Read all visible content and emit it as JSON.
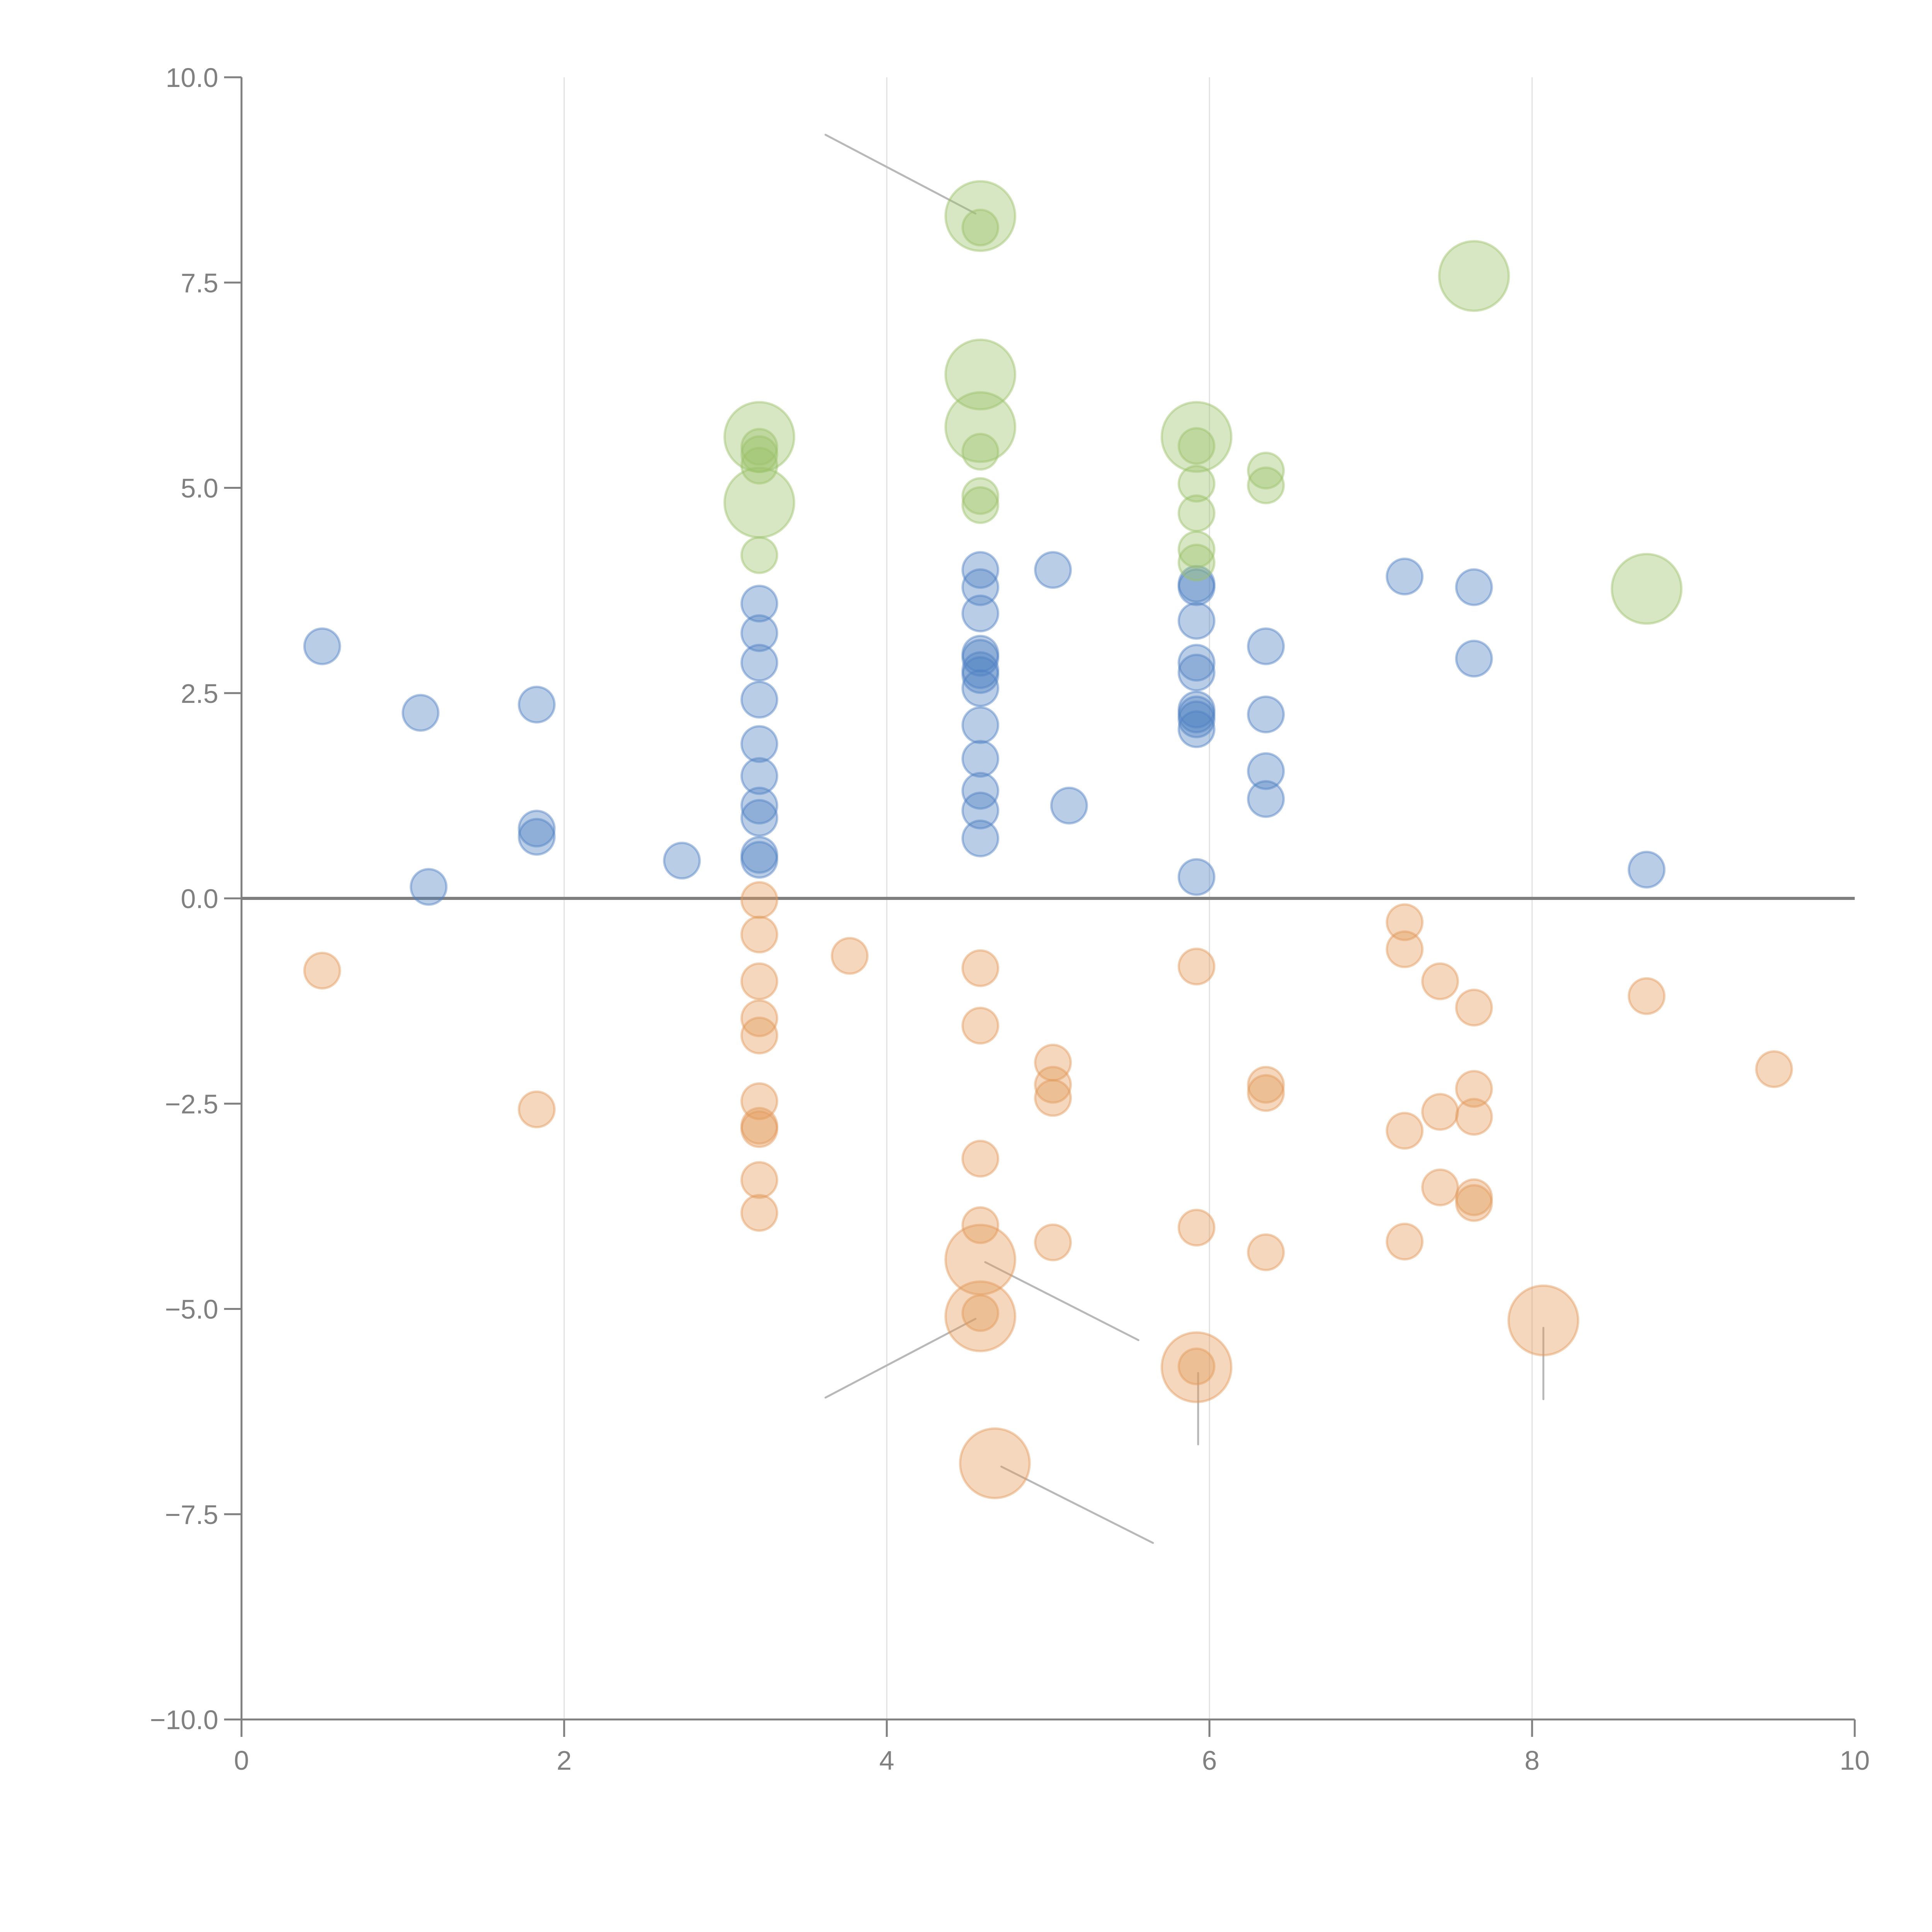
{
  "chart_data": {
    "type": "scatter",
    "title": "",
    "xlabel": "",
    "ylabel": "",
    "xlim": [
      0,
      10
    ],
    "ylim": [
      -10,
      10
    ],
    "grid": "vertical",
    "x_ticks": [
      "0",
      "2",
      "4",
      "6",
      "8",
      "10"
    ],
    "x_tick_values": [
      0,
      2,
      4,
      6,
      8,
      10
    ],
    "y_ticks": [
      "10.0",
      "7.5",
      "5.0",
      "2.5",
      "0.0",
      "−2.5",
      "−5.0",
      "−7.5",
      "−10.0"
    ],
    "y_tick_values": [
      10,
      7.5,
      5,
      2.5,
      0,
      -2.5,
      -5,
      -7.5,
      -10
    ],
    "reference_line_y": 0,
    "legend": "none",
    "size_note": "size 1 = small marker, size 2 = large marker",
    "series": [
      {
        "name": "blue",
        "color": "#4f81c4",
        "points": [
          [
            0.5,
            3.07,
            1
          ],
          [
            1.11,
            2.26,
            1
          ],
          [
            1.83,
            2.36,
            1
          ],
          [
            1.83,
            0.85,
            1
          ],
          [
            1.83,
            0.75,
            1
          ],
          [
            1.16,
            0.14,
            1
          ],
          [
            2.73,
            0.46,
            1
          ],
          [
            3.21,
            3.59,
            1
          ],
          [
            3.21,
            3.23,
            1
          ],
          [
            3.21,
            2.87,
            1
          ],
          [
            3.21,
            2.42,
            1
          ],
          [
            3.21,
            1.88,
            1
          ],
          [
            3.21,
            1.49,
            1
          ],
          [
            3.21,
            1.13,
            1
          ],
          [
            3.21,
            0.98,
            1
          ],
          [
            3.21,
            0.53,
            1
          ],
          [
            3.21,
            0.47,
            1
          ],
          [
            4.58,
            4.0,
            1
          ],
          [
            4.58,
            3.79,
            1
          ],
          [
            4.58,
            3.47,
            1
          ],
          [
            4.58,
            2.98,
            1
          ],
          [
            4.58,
            2.93,
            1
          ],
          [
            4.58,
            2.78,
            1
          ],
          [
            4.58,
            2.72,
            1
          ],
          [
            4.58,
            2.56,
            1
          ],
          [
            4.58,
            2.11,
            1
          ],
          [
            4.58,
            1.7,
            1
          ],
          [
            4.58,
            1.31,
            1
          ],
          [
            4.58,
            1.07,
            1
          ],
          [
            4.58,
            0.73,
            1
          ],
          [
            5.03,
            4.0,
            1
          ],
          [
            5.13,
            1.13,
            1
          ],
          [
            5.92,
            3.83,
            1
          ],
          [
            5.92,
            3.79,
            1
          ],
          [
            5.92,
            3.38,
            1
          ],
          [
            5.92,
            2.87,
            1
          ],
          [
            5.92,
            2.75,
            1
          ],
          [
            5.92,
            2.3,
            1
          ],
          [
            5.92,
            2.24,
            1
          ],
          [
            5.92,
            2.18,
            1
          ],
          [
            5.92,
            2.06,
            1
          ],
          [
            5.92,
            0.26,
            1
          ],
          [
            6.35,
            3.07,
            1
          ],
          [
            6.35,
            2.24,
            1
          ],
          [
            6.35,
            1.55,
            1
          ],
          [
            6.35,
            1.21,
            1
          ],
          [
            7.21,
            3.92,
            1
          ],
          [
            7.64,
            3.79,
            1
          ],
          [
            7.64,
            2.92,
            1
          ],
          [
            8.71,
            0.35,
            1
          ]
        ]
      },
      {
        "name": "orange",
        "color": "#e39a5a",
        "points": [
          [
            0.5,
            -0.88,
            1
          ],
          [
            1.83,
            -2.57,
            1
          ],
          [
            3.21,
            -0.02,
            1
          ],
          [
            3.21,
            -0.44,
            1
          ],
          [
            3.21,
            -1.01,
            1
          ],
          [
            3.21,
            -1.46,
            1
          ],
          [
            3.21,
            -1.67,
            1
          ],
          [
            3.21,
            -2.47,
            1
          ],
          [
            3.21,
            -2.77,
            1
          ],
          [
            3.21,
            -2.81,
            1
          ],
          [
            3.21,
            -3.43,
            1
          ],
          [
            3.21,
            -3.83,
            1
          ],
          [
            3.77,
            -0.7,
            1
          ],
          [
            4.58,
            -0.85,
            1
          ],
          [
            4.58,
            -1.55,
            1
          ],
          [
            4.58,
            -3.17,
            1
          ],
          [
            4.58,
            -3.98,
            1
          ],
          [
            4.58,
            -5.05,
            1
          ],
          [
            4.58,
            -4.4,
            2
          ],
          [
            4.58,
            -5.09,
            2
          ],
          [
            4.67,
            -6.88,
            2
          ],
          [
            5.03,
            -2.0,
            1
          ],
          [
            5.03,
            -2.27,
            1
          ],
          [
            5.03,
            -2.43,
            1
          ],
          [
            5.03,
            -4.19,
            1
          ],
          [
            5.92,
            -0.83,
            1
          ],
          [
            5.92,
            -4.01,
            1
          ],
          [
            5.92,
            -5.7,
            1
          ],
          [
            5.92,
            -5.71,
            2
          ],
          [
            6.35,
            -2.27,
            1
          ],
          [
            6.35,
            -2.37,
            1
          ],
          [
            6.35,
            -4.31,
            1
          ],
          [
            7.21,
            -0.29,
            1
          ],
          [
            7.21,
            -0.62,
            1
          ],
          [
            7.21,
            -2.83,
            1
          ],
          [
            7.21,
            -4.18,
            1
          ],
          [
            7.43,
            -1.01,
            1
          ],
          [
            7.43,
            -2.6,
            1
          ],
          [
            7.43,
            -3.52,
            1
          ],
          [
            7.64,
            -1.33,
            1
          ],
          [
            7.64,
            -2.32,
            1
          ],
          [
            7.64,
            -2.66,
            1
          ],
          [
            7.64,
            -3.64,
            1
          ],
          [
            7.64,
            -3.71,
            1
          ],
          [
            8.07,
            -5.14,
            2
          ],
          [
            8.71,
            -1.19,
            1
          ],
          [
            9.5,
            -2.08,
            1
          ]
        ]
      },
      {
        "name": "green",
        "color": "#9bc26a",
        "points": [
          [
            3.21,
            5.62,
            2
          ],
          [
            3.21,
            5.5,
            1
          ],
          [
            3.21,
            5.41,
            1
          ],
          [
            3.21,
            5.27,
            1
          ],
          [
            3.21,
            4.82,
            2
          ],
          [
            3.21,
            4.18,
            1
          ],
          [
            4.58,
            8.31,
            2
          ],
          [
            4.58,
            8.17,
            1
          ],
          [
            4.58,
            6.38,
            2
          ],
          [
            4.58,
            5.74,
            2
          ],
          [
            4.58,
            5.44,
            1
          ],
          [
            4.58,
            4.9,
            1
          ],
          [
            4.58,
            4.79,
            1
          ],
          [
            5.92,
            5.62,
            2
          ],
          [
            5.92,
            5.51,
            1
          ],
          [
            5.92,
            5.05,
            1
          ],
          [
            5.92,
            4.69,
            1
          ],
          [
            5.92,
            4.25,
            1
          ],
          [
            5.92,
            4.09,
            1
          ],
          [
            6.35,
            5.21,
            1
          ],
          [
            6.35,
            5.03,
            1
          ],
          [
            7.64,
            7.58,
            2
          ],
          [
            8.71,
            3.77,
            2
          ]
        ]
      }
    ],
    "annotation_leaders": [
      {
        "from": [
          3.62,
          9.3
        ],
        "to": [
          4.55,
          8.34
        ],
        "style": "gray"
      },
      {
        "from": [
          4.61,
          6.38
        ],
        "to": [
          4.77,
          6.59
        ],
        "style": "white"
      },
      {
        "from": [
          3.22,
          5.71
        ],
        "to": [
          3.35,
          5.96
        ],
        "style": "white"
      },
      {
        "from": [
          3.24,
          4.82
        ],
        "to": [
          3.39,
          4.88
        ],
        "style": "white"
      },
      {
        "from": [
          5.96,
          5.65
        ],
        "to": [
          6.12,
          5.79
        ],
        "style": "white"
      },
      {
        "from": [
          4.61,
          -4.43
        ],
        "to": [
          5.56,
          -5.38
        ],
        "style": "gray"
      },
      {
        "from": [
          3.62,
          -6.08
        ],
        "to": [
          4.55,
          -5.12
        ],
        "style": "gray"
      },
      {
        "from": [
          5.93,
          -5.78
        ],
        "to": [
          5.93,
          -6.65
        ],
        "style": "gray"
      },
      {
        "from": [
          4.71,
          -6.92
        ],
        "to": [
          5.65,
          -7.85
        ],
        "style": "gray"
      },
      {
        "from": [
          8.07,
          -5.23
        ],
        "to": [
          8.07,
          -6.1
        ],
        "style": "gray"
      }
    ]
  }
}
